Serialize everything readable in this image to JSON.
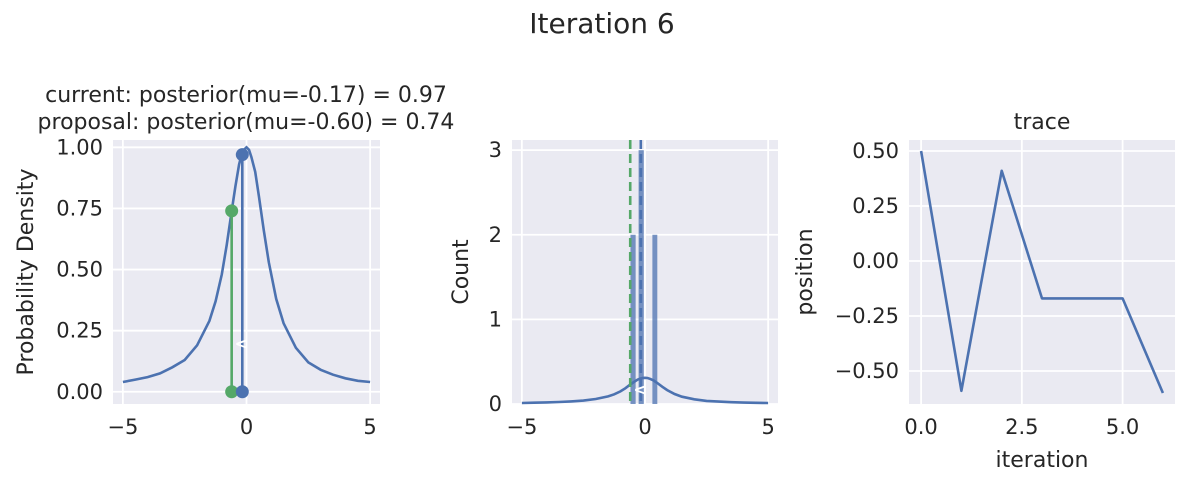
{
  "figure": {
    "suptitle": "Iteration 6"
  },
  "chart_data": [
    {
      "type": "line",
      "title_lines": [
        "current: posterior(mu=-0.17) = 0.97",
        "proposal: posterior(mu=-0.60) = 0.74"
      ],
      "xlabel": "",
      "ylabel": "Probability Density",
      "xlim": [
        -5.4,
        5.4
      ],
      "ylim": [
        -0.05,
        1.03
      ],
      "xticks": [
        -5,
        0,
        5
      ],
      "xtick_labels": [
        "−5",
        "0",
        "5"
      ],
      "yticks": [
        0.0,
        0.25,
        0.5,
        0.75,
        1.0
      ],
      "ytick_labels": [
        "0.00",
        "0.25",
        "0.50",
        "0.75",
        "1.00"
      ],
      "grid": true,
      "curve": {
        "name": "posterior",
        "color": "#4c72b0",
        "x": [
          -5,
          -4.5,
          -4,
          -3.5,
          -3,
          -2.5,
          -2,
          -1.5,
          -1.25,
          -1,
          -0.8,
          -0.6,
          -0.45,
          -0.3,
          -0.2,
          -0.1,
          0,
          0.1,
          0.2,
          0.35,
          0.5,
          0.7,
          0.9,
          1.2,
          1.5,
          2,
          2.5,
          3,
          3.5,
          4,
          4.5,
          5
        ],
        "y": [
          0.04,
          0.05,
          0.06,
          0.075,
          0.1,
          0.13,
          0.19,
          0.29,
          0.37,
          0.48,
          0.6,
          0.74,
          0.84,
          0.93,
          0.97,
          0.99,
          1.0,
          0.99,
          0.96,
          0.9,
          0.8,
          0.66,
          0.53,
          0.38,
          0.28,
          0.18,
          0.12,
          0.09,
          0.07,
          0.055,
          0.045,
          0.04
        ]
      },
      "current_point": {
        "x": -0.17,
        "y": 0.97,
        "color": "#4c72b0"
      },
      "proposal_point": {
        "x": -0.6,
        "y": 0.74,
        "color": "#55a868"
      },
      "arrow_label": "<"
    },
    {
      "type": "bar",
      "title": "",
      "xlabel": "",
      "ylabel": "Count",
      "xlim": [
        -5.4,
        5.4
      ],
      "ylim": [
        0,
        3.12
      ],
      "xticks": [
        -5,
        0,
        5
      ],
      "xtick_labels": [
        "−5",
        "0",
        "5"
      ],
      "yticks": [
        0,
        1,
        2,
        3
      ],
      "ytick_labels": [
        "0",
        "1",
        "2",
        "3"
      ],
      "grid": true,
      "bars": [
        {
          "x0": -0.59,
          "x1": -0.38,
          "count": 2
        },
        {
          "x0": -0.26,
          "x1": -0.05,
          "count": 3
        },
        {
          "x0": 0.3,
          "x1": 0.5,
          "count": 2
        }
      ],
      "bar_color": "#4c72b0",
      "density_curve_scale": 0.31,
      "vlines": [
        {
          "x": -0.6,
          "style": "dashed",
          "color": "#55a868"
        },
        {
          "x": -0.17,
          "style": "dashed",
          "color": "#4c72b0"
        }
      ],
      "arrow_label": "<"
    },
    {
      "type": "line",
      "title": "trace",
      "xlabel": "iteration",
      "ylabel": "position",
      "xlim": [
        -0.3,
        6.3
      ],
      "ylim": [
        -0.65,
        0.55
      ],
      "xticks": [
        0,
        2.5,
        5
      ],
      "xtick_labels": [
        "0.0",
        "2.5",
        "5.0"
      ],
      "yticks": [
        0.5,
        0.25,
        0.0,
        -0.25,
        -0.5
      ],
      "ytick_labels": [
        "0.50",
        "0.25",
        "0.00",
        "−0.25",
        "−0.50"
      ],
      "grid": true,
      "series": [
        {
          "x": [
            0,
            1,
            2,
            3,
            4,
            5,
            6
          ],
          "y": [
            0.5,
            -0.59,
            0.41,
            -0.17,
            -0.17,
            -0.17,
            -0.6
          ],
          "color": "#4c72b0"
        }
      ]
    }
  ]
}
